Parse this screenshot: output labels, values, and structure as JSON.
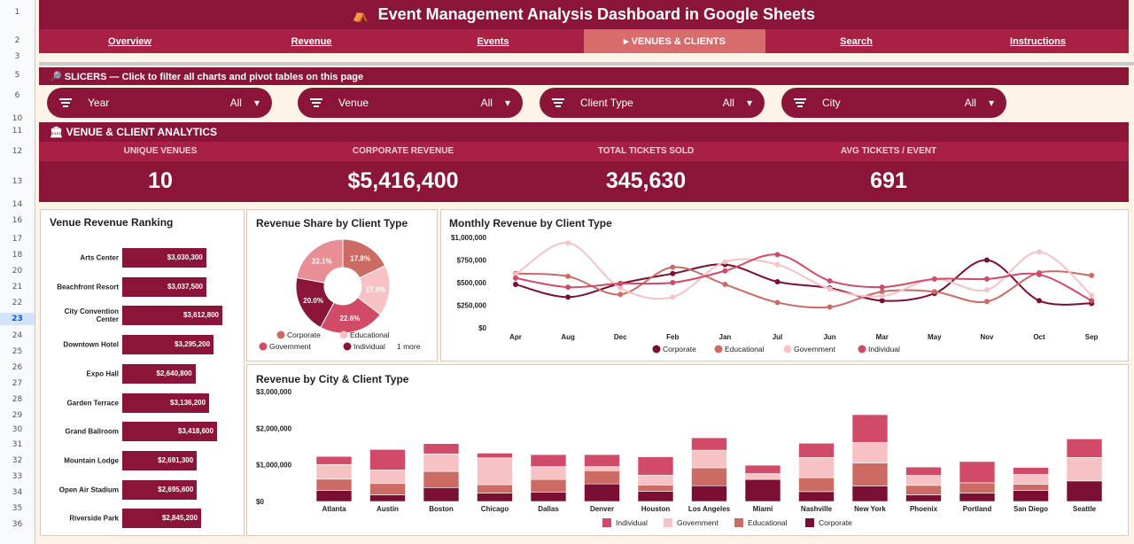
{
  "rows": [
    "1",
    "2",
    "3",
    "5",
    "6",
    "10",
    "11",
    "12",
    "13",
    "14",
    "16",
    "17",
    "18",
    "20",
    "21",
    "22",
    "23",
    "24",
    "25",
    "26",
    "27",
    "28",
    "29",
    "30",
    "31",
    "32",
    "33",
    "34",
    "35",
    "36"
  ],
  "title": "Event Management Analysis Dashboard in Google Sheets",
  "title_icon": "circus-tent-icon",
  "nav": [
    {
      "label": "Overview"
    },
    {
      "label": "Revenue"
    },
    {
      "label": "Events"
    },
    {
      "label": "▸ VENUES & CLIENTS",
      "active": true
    },
    {
      "label": "Search"
    },
    {
      "label": "Instructions"
    }
  ],
  "slicers_header": "🔎 SLICERS — Click to filter all charts and pivot tables on this page",
  "slicers": [
    {
      "label": "Year",
      "value": "All"
    },
    {
      "label": "Venue",
      "value": "All"
    },
    {
      "label": "Client Type",
      "value": "All"
    },
    {
      "label": "City",
      "value": "All"
    }
  ],
  "section_header": "🏛 VENUE & CLIENT ANALYTICS",
  "kpis": [
    {
      "label": "UNIQUE VENUES",
      "value": "10"
    },
    {
      "label": "CORPORATE REVENUE",
      "value": "$5,416,400"
    },
    {
      "label": "TOTAL TICKETS SOLD",
      "value": "345,630"
    },
    {
      "label": "AVG TICKETS / EVENT",
      "value": "691"
    }
  ],
  "colors": {
    "corporate": "#7a0f33",
    "educational": "#cc6b63",
    "government": "#f6c2c4",
    "individual": "#d14a68",
    "bar": "#8a1538"
  },
  "venue_ranking": {
    "title": "Venue Revenue Ranking",
    "items": [
      {
        "name": "Arts Center",
        "label": "$3,030,300",
        "value": 3030300
      },
      {
        "name": "Beachfront Resort",
        "label": "$3,037,500",
        "value": 3037500
      },
      {
        "name": "City Convention Center",
        "label": "$3,612,800",
        "value": 3612800
      },
      {
        "name": "Downtown Hotel",
        "label": "$3,295,200",
        "value": 3295200
      },
      {
        "name": "Expo Hall",
        "label": "$2,640,800",
        "value": 2640800
      },
      {
        "name": "Garden Terrace",
        "label": "$3,136,200",
        "value": 3136200
      },
      {
        "name": "Grand Ballroom",
        "label": "$3,418,600",
        "value": 3418600
      },
      {
        "name": "Mountain Lodge",
        "label": "$2,691,300",
        "value": 2691300
      },
      {
        "name": "Open Air Stadium",
        "label": "$2,695,600",
        "value": 2695600
      },
      {
        "name": "Riverside Park",
        "label": "$2,845,200",
        "value": 2845200
      }
    ]
  },
  "chart_data": [
    {
      "type": "pie",
      "title": "Revenue Share by Client Type",
      "slices": [
        {
          "name": "Corporate",
          "value": 17.8,
          "label": "17.8%",
          "color": "#cc6b63"
        },
        {
          "name": "Educational",
          "value": 17.5,
          "label": "17.5%",
          "color": "#f6c2c4"
        },
        {
          "name": "Government",
          "value": 22.6,
          "label": "22.6%",
          "color": "#d14a68"
        },
        {
          "name": "Individual",
          "value": 20.0,
          "label": "20.0%",
          "color": "#8a1538"
        },
        {
          "name": "",
          "value": 22.1,
          "label": "22.1%",
          "color": "#e88f96"
        }
      ],
      "legend": [
        "Corporate",
        "Educational",
        "Government",
        "Individual"
      ],
      "legend_more": "1 more"
    },
    {
      "type": "line",
      "title": "Monthly Revenue by Client Type",
      "categories": [
        "Apr",
        "Aug",
        "Dec",
        "Feb",
        "Jan",
        "Jul",
        "Jun",
        "Mar",
        "May",
        "Nov",
        "Oct",
        "Sep"
      ],
      "yticks": [
        "$1,000,000",
        "$750,000",
        "$500,000",
        "$250,000",
        "$0"
      ],
      "ylim": [
        0,
        1000000
      ],
      "series": [
        {
          "name": "Corporate",
          "color": "#7a0f33",
          "values": [
            480000,
            340000,
            490000,
            600000,
            700000,
            510000,
            440000,
            300000,
            380000,
            750000,
            300000,
            270000
          ]
        },
        {
          "name": "Educational",
          "color": "#cc6b63",
          "values": [
            600000,
            570000,
            370000,
            670000,
            480000,
            280000,
            230000,
            400000,
            400000,
            290000,
            610000,
            580000
          ]
        },
        {
          "name": "Government",
          "color": "#f6c2c4",
          "values": [
            590000,
            940000,
            440000,
            340000,
            730000,
            700000,
            430000,
            350000,
            540000,
            420000,
            840000,
            360000
          ]
        },
        {
          "name": "Individual",
          "color": "#d14a68",
          "values": [
            550000,
            450000,
            490000,
            500000,
            630000,
            810000,
            520000,
            450000,
            540000,
            540000,
            590000,
            300000
          ]
        }
      ]
    },
    {
      "type": "bar",
      "stacked": true,
      "title": "Revenue by City & Client Type",
      "categories": [
        "Atlanta",
        "Austin",
        "Boston",
        "Chicago",
        "Dallas",
        "Denver",
        "Houston",
        "Los Angeles",
        "Miami",
        "Nashville",
        "New York",
        "Phoenix",
        "Portland",
        "San Diego",
        "Seattle"
      ],
      "yticks": [
        "$3,000,000",
        "$2,000,000",
        "$1,000,000",
        "$0"
      ],
      "ylim": [
        0,
        3000000
      ],
      "series": [
        {
          "name": "Corporate",
          "color": "#7a0f33",
          "values": [
            300000,
            180000,
            380000,
            230000,
            250000,
            480000,
            280000,
            430000,
            600000,
            270000,
            420000,
            180000,
            230000,
            300000,
            560000
          ]
        },
        {
          "name": "Educational",
          "color": "#cc6b63",
          "values": [
            310000,
            310000,
            440000,
            230000,
            350000,
            360000,
            170000,
            490000,
            0,
            380000,
            630000,
            260000,
            280000,
            170000,
            0
          ]
        },
        {
          "name": "Government",
          "color": "#f6c2c4",
          "values": [
            400000,
            370000,
            480000,
            730000,
            350000,
            110000,
            270000,
            480000,
            160000,
            550000,
            560000,
            270000,
            0,
            270000,
            640000
          ]
        },
        {
          "name": "Individual",
          "color": "#d14a68",
          "values": [
            220000,
            560000,
            280000,
            130000,
            330000,
            330000,
            500000,
            340000,
            230000,
            390000,
            760000,
            230000,
            580000,
            190000,
            510000
          ]
        }
      ],
      "legend": [
        "Individual",
        "Government",
        "Educational",
        "Corporate"
      ]
    }
  ]
}
